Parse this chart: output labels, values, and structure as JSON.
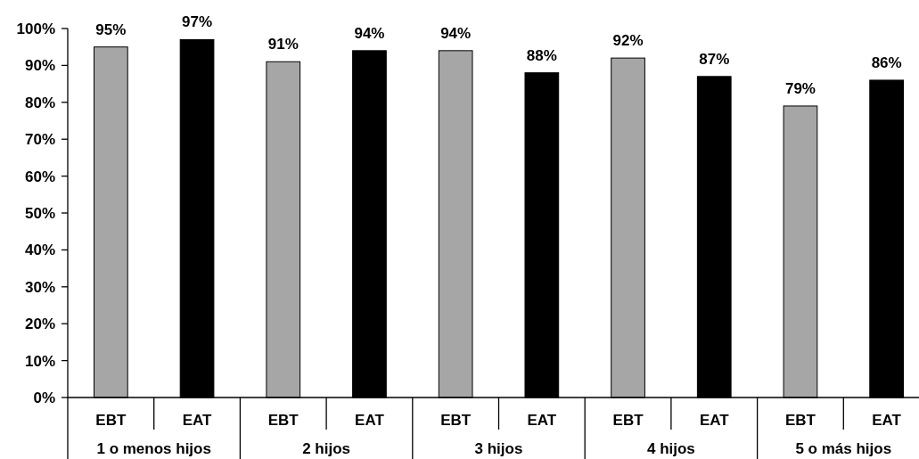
{
  "chart_data": {
    "type": "bar",
    "categories": [
      "1 o menos hijos",
      "2 hijos",
      "3 hijos",
      "4 hijos",
      "5 o más hijos"
    ],
    "series": [
      {
        "name": "EBT",
        "color": "#a6a6a6",
        "values": [
          95,
          91,
          94,
          92,
          79
        ],
        "value_labels": [
          "95%",
          "91%",
          "94%",
          "92%",
          "79%"
        ]
      },
      {
        "name": "EAT",
        "color": "#000000",
        "values": [
          97,
          94,
          88,
          87,
          86
        ],
        "value_labels": [
          "97%",
          "94%",
          "88%",
          "87%",
          "86%"
        ]
      }
    ],
    "ylim": [
      0,
      100
    ],
    "yticks": [
      {
        "value": 0,
        "label": "0%"
      },
      {
        "value": 10,
        "label": "10%"
      },
      {
        "value": 20,
        "label": "20%"
      },
      {
        "value": 30,
        "label": "30%"
      },
      {
        "value": 40,
        "label": "40%"
      },
      {
        "value": 50,
        "label": "50%"
      },
      {
        "value": 60,
        "label": "60%"
      },
      {
        "value": 70,
        "label": "70%"
      },
      {
        "value": 80,
        "label": "80%"
      },
      {
        "value": 90,
        "label": "90%"
      },
      {
        "value": 100,
        "label": "100%"
      }
    ]
  }
}
